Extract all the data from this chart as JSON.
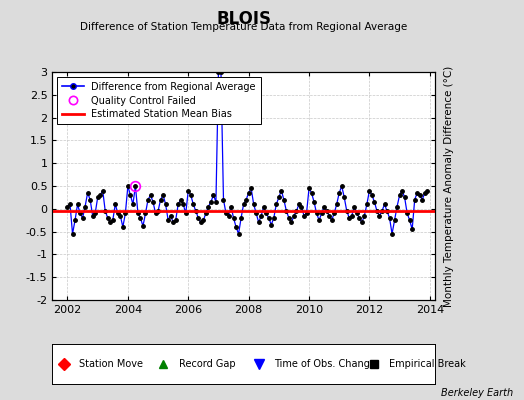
{
  "title": "BLOIS",
  "subtitle": "Difference of Station Temperature Data from Regional Average",
  "ylabel": "Monthly Temperature Anomaly Difference (°C)",
  "xlim": [
    2001.5,
    2014.17
  ],
  "ylim": [
    -2.0,
    3.0
  ],
  "yticks": [
    -2,
    -1.5,
    -1,
    -0.5,
    0,
    0.5,
    1,
    1.5,
    2,
    2.5,
    3
  ],
  "xticks": [
    2002,
    2004,
    2006,
    2008,
    2010,
    2012,
    2014
  ],
  "bias_value": -0.05,
  "line_color": "#0000FF",
  "bias_color": "#FF0000",
  "dot_color": "#000000",
  "qc_color": "#FF00FF",
  "bg_color": "#DCDCDC",
  "plot_bg": "#FFFFFF",
  "grid_color": "#C8C8C8",
  "footer": "Berkeley Earth",
  "seed": 42,
  "n_points": 144,
  "times": [
    2002.0,
    2002.0833,
    2002.1667,
    2002.25,
    2002.3333,
    2002.4167,
    2002.5,
    2002.5833,
    2002.6667,
    2002.75,
    2002.8333,
    2002.9167,
    2003.0,
    2003.0833,
    2003.1667,
    2003.25,
    2003.3333,
    2003.4167,
    2003.5,
    2003.5833,
    2003.6667,
    2003.75,
    2003.8333,
    2003.9167,
    2004.0,
    2004.0833,
    2004.1667,
    2004.25,
    2004.3333,
    2004.4167,
    2004.5,
    2004.5833,
    2004.6667,
    2004.75,
    2004.8333,
    2004.9167,
    2005.0,
    2005.0833,
    2005.1667,
    2005.25,
    2005.3333,
    2005.4167,
    2005.5,
    2005.5833,
    2005.6667,
    2005.75,
    2005.8333,
    2005.9167,
    2006.0,
    2006.0833,
    2006.1667,
    2006.25,
    2006.3333,
    2006.4167,
    2006.5,
    2006.5833,
    2006.6667,
    2006.75,
    2006.8333,
    2006.9167,
    2007.0,
    2007.0833,
    2007.1667,
    2007.25,
    2007.3333,
    2007.4167,
    2007.5,
    2007.5833,
    2007.6667,
    2007.75,
    2007.8333,
    2007.9167,
    2008.0,
    2008.0833,
    2008.1667,
    2008.25,
    2008.3333,
    2008.4167,
    2008.5,
    2008.5833,
    2008.6667,
    2008.75,
    2008.8333,
    2008.9167,
    2009.0,
    2009.0833,
    2009.1667,
    2009.25,
    2009.3333,
    2009.4167,
    2009.5,
    2009.5833,
    2009.6667,
    2009.75,
    2009.8333,
    2009.9167,
    2010.0,
    2010.0833,
    2010.1667,
    2010.25,
    2010.3333,
    2010.4167,
    2010.5,
    2010.5833,
    2010.6667,
    2010.75,
    2010.8333,
    2010.9167,
    2011.0,
    2011.0833,
    2011.1667,
    2011.25,
    2011.3333,
    2011.4167,
    2011.5,
    2011.5833,
    2011.6667,
    2011.75,
    2011.8333,
    2011.9167,
    2012.0,
    2012.0833,
    2012.1667,
    2012.25,
    2012.3333,
    2012.4167,
    2012.5,
    2012.5833,
    2012.6667,
    2012.75,
    2012.8333,
    2012.9167,
    2013.0,
    2013.0833,
    2013.1667,
    2013.25,
    2013.3333,
    2013.4167,
    2013.5,
    2013.5833,
    2013.6667,
    2013.75,
    2013.8333,
    2013.9167
  ]
}
